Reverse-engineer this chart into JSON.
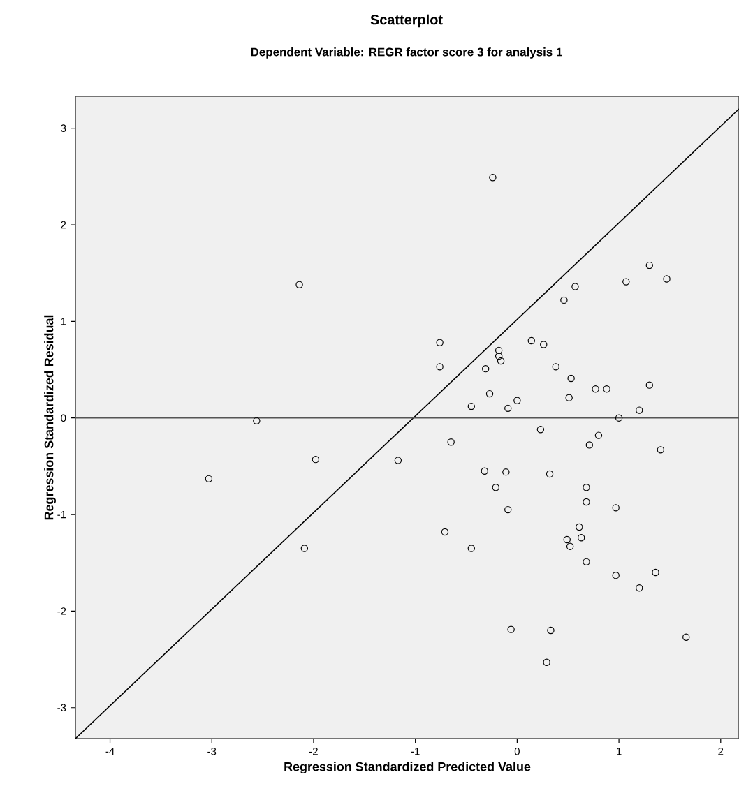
{
  "chart_data": {
    "type": "scatter",
    "title": "Scatterplot",
    "subtitle": "Dependent Variable: REGR factor score   3 for analysis 1",
    "xlabel": "Regression Standardized Predicted Value",
    "ylabel": "Regression Standardized Residual",
    "xlim": [
      -4.34,
      2.18
    ],
    "ylim": [
      -3.32,
      3.33
    ],
    "xticks": [
      -4,
      -3,
      -2,
      -1,
      0,
      1,
      2
    ],
    "yticks": [
      -3,
      -2,
      -1,
      0,
      1,
      2,
      3
    ],
    "grid": false,
    "ref_lines": [
      {
        "axis": "y",
        "value": 0,
        "color": "#555555"
      }
    ],
    "series": [
      {
        "marker": "circle",
        "color": "#000000",
        "x": [
          -2.14,
          -0.24,
          1.3,
          1.47,
          1.07,
          0.57,
          0.46,
          -0.76,
          -0.76,
          -0.18,
          -0.18,
          -0.16,
          -0.31,
          0.14,
          0.26,
          0.38,
          0.53,
          0.77,
          0.88,
          1.3,
          -0.27,
          -0.45,
          0.0,
          -0.09,
          0.51,
          1.0,
          1.2,
          -2.56,
          -1.98,
          -3.03,
          -2.09,
          0.23,
          0.8,
          0.71,
          1.41,
          -0.65,
          -1.17,
          -0.32,
          -0.11,
          0.32,
          -0.21,
          0.68,
          0.68,
          0.97,
          -0.09,
          -0.71,
          -0.45,
          0.61,
          0.49,
          0.52,
          0.63,
          0.68,
          0.97,
          1.36,
          1.2,
          -0.06,
          0.33,
          0.29,
          1.66
        ],
        "values": [
          1.38,
          2.49,
          1.58,
          1.44,
          1.41,
          1.36,
          1.22,
          0.78,
          0.53,
          0.7,
          0.64,
          0.59,
          0.51,
          0.8,
          0.76,
          0.53,
          0.41,
          0.3,
          0.3,
          0.34,
          0.25,
          0.12,
          0.18,
          0.1,
          0.21,
          0.0,
          0.08,
          -0.03,
          -0.43,
          -0.63,
          -1.35,
          -0.12,
          -0.18,
          -0.28,
          -0.33,
          -0.25,
          -0.44,
          -0.55,
          -0.56,
          -0.58,
          -0.72,
          -0.72,
          -0.87,
          -0.93,
          -0.95,
          -1.18,
          -1.35,
          -1.13,
          -1.26,
          -1.33,
          -1.24,
          -1.49,
          -1.63,
          -1.6,
          -1.76,
          -2.19,
          -2.2,
          -2.53,
          -2.27
        ]
      },
      {
        "type": "line",
        "marker": "none",
        "color": "#000000",
        "x": [
          -4.34,
          2.18
        ],
        "values": [
          -3.32,
          3.2
        ]
      }
    ]
  }
}
